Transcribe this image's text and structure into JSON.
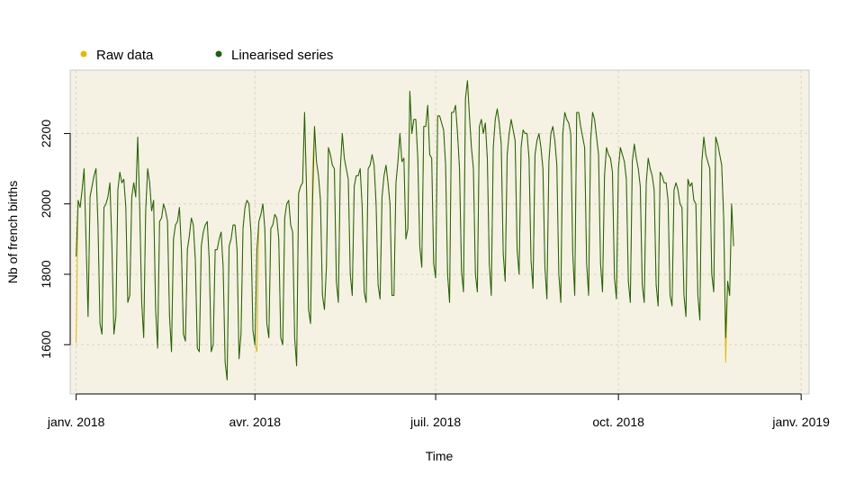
{
  "chart_data": {
    "type": "line",
    "title": "",
    "xlabel": "Time",
    "ylabel": "Nb of french births",
    "x_start": "2018-01-01",
    "x_end": "2018-12-31",
    "x_range": [
      "2017-12-29",
      "2019-01-05"
    ],
    "ylim": [
      1460,
      2380
    ],
    "x_ticks": [
      {
        "date": "2018-01-01",
        "label": "janv. 2018"
      },
      {
        "date": "2018-04-01",
        "label": "avr. 2018"
      },
      {
        "date": "2018-07-01",
        "label": "juil. 2018"
      },
      {
        "date": "2018-10-01",
        "label": "oct. 2018"
      },
      {
        "date": "2019-01-01",
        "label": "janv. 2019"
      }
    ],
    "y_ticks": [
      1600,
      1800,
      2000,
      2200
    ],
    "grid": true,
    "legend_position": "top-left",
    "plot_background": "#f5f2e4",
    "series": [
      {
        "name": "Raw data",
        "color": "#e6b800",
        "values": [
          1605,
          2010,
          1990,
          2040,
          2100,
          1890,
          1680,
          2020,
          2050,
          2080,
          2100,
          1940,
          1660,
          1630,
          1990,
          2000,
          2020,
          2060,
          1880,
          1630,
          1680,
          2040,
          2090,
          2060,
          2070,
          1990,
          1720,
          1740,
          2020,
          2060,
          2020,
          2190,
          1990,
          1720,
          1620,
          1980,
          2100,
          2060,
          1980,
          2010,
          1700,
          1590,
          1950,
          1960,
          2000,
          1980,
          1950,
          1680,
          1580,
          1900,
          1940,
          1950,
          1990,
          1870,
          1630,
          1610,
          1870,
          1910,
          1960,
          1940,
          1840,
          1590,
          1580,
          1880,
          1920,
          1940,
          1950,
          1840,
          1580,
          1600,
          1870,
          1870,
          1900,
          1920,
          1820,
          1550,
          1500,
          1880,
          1900,
          1940,
          1940,
          1870,
          1560,
          1630,
          1930,
          1990,
          2010,
          2000,
          1920,
          1640,
          1600,
          1580,
          1950,
          1970,
          2000,
          1930,
          1660,
          1620,
          1930,
          1940,
          1970,
          1960,
          1900,
          1620,
          1600,
          1960,
          2000,
          2010,
          1940,
          1920,
          1620,
          1540,
          2030,
          2050,
          2060,
          2260,
          2040,
          1700,
          1660,
          2100,
          2220,
          2120,
          2080,
          2010,
          1740,
          1700,
          1820,
          2160,
          2140,
          2110,
          2100,
          1780,
          1720,
          2100,
          2200,
          2130,
          2100,
          2070,
          1800,
          1740,
          2050,
          2080,
          2080,
          2100,
          1990,
          1750,
          1720,
          2100,
          2110,
          2140,
          2110,
          2000,
          1770,
          1730,
          2020,
          2080,
          2110,
          2060,
          2000,
          1740,
          1740,
          2060,
          2120,
          2200,
          2120,
          2130,
          1900,
          1930,
          2320,
          2200,
          2240,
          2240,
          2130,
          1880,
          1820,
          2220,
          2220,
          2280,
          2140,
          2130,
          1830,
          1790,
          2250,
          2250,
          2230,
          2210,
          2110,
          1800,
          1720,
          2260,
          2260,
          2280,
          2200,
          2100,
          1810,
          1750,
          2300,
          2350,
          2250,
          2160,
          2100,
          1800,
          1750,
          2220,
          2240,
          2200,
          2230,
          2130,
          1830,
          1740,
          2160,
          2240,
          2270,
          2230,
          2170,
          1860,
          1780,
          2140,
          2200,
          2240,
          2210,
          2180,
          1870,
          1800,
          2160,
          2210,
          2200,
          2200,
          2130,
          1840,
          1760,
          2140,
          2180,
          2200,
          2160,
          2100,
          1820,
          1730,
          2120,
          2200,
          2220,
          2180,
          2110,
          1800,
          1720,
          2200,
          2260,
          2240,
          2230,
          2200,
          1860,
          1740,
          2260,
          2260,
          2220,
          2190,
          2160,
          1830,
          1740,
          2180,
          2260,
          2240,
          2190,
          2140,
          1830,
          1750,
          2080,
          2160,
          2140,
          2130,
          2090,
          1790,
          1730,
          2100,
          2160,
          2140,
          2120,
          2070,
          1780,
          1720,
          2120,
          2170,
          2130,
          2100,
          2050,
          1770,
          1720,
          2060,
          2130,
          2100,
          2080,
          2040,
          1770,
          1710,
          2090,
          2080,
          2060,
          2060,
          2010,
          1740,
          1710,
          2040,
          2060,
          2040,
          2000,
          1990,
          1740,
          1680,
          2070,
          2050,
          2060,
          2010,
          2000,
          1740,
          1670,
          2120,
          2190,
          2140,
          2120,
          2100,
          1800,
          1750,
          2190,
          2170,
          2140,
          2110,
          1960,
          1550,
          1780,
          1740,
          2000,
          1880
        ]
      },
      {
        "name": "Linearised series",
        "color": "#1a6310",
        "values": [
          1850,
          2010,
          1990,
          2040,
          2100,
          1890,
          1680,
          2020,
          2050,
          2080,
          2100,
          1940,
          1660,
          1630,
          1990,
          2000,
          2020,
          2060,
          1880,
          1630,
          1680,
          2040,
          2090,
          2060,
          2070,
          1990,
          1720,
          1740,
          2020,
          2060,
          2020,
          2190,
          1990,
          1720,
          1620,
          1980,
          2100,
          2060,
          1980,
          2010,
          1700,
          1590,
          1950,
          1960,
          2000,
          1980,
          1950,
          1680,
          1580,
          1900,
          1940,
          1950,
          1990,
          1870,
          1630,
          1610,
          1870,
          1910,
          1960,
          1940,
          1840,
          1590,
          1580,
          1880,
          1920,
          1940,
          1950,
          1840,
          1580,
          1600,
          1870,
          1870,
          1900,
          1920,
          1820,
          1550,
          1500,
          1880,
          1900,
          1940,
          1940,
          1870,
          1560,
          1630,
          1930,
          1990,
          2010,
          2000,
          1920,
          1640,
          1600,
          1870,
          1950,
          1970,
          2000,
          1930,
          1660,
          1620,
          1930,
          1940,
          1970,
          1960,
          1900,
          1620,
          1600,
          1960,
          2000,
          2010,
          1940,
          1920,
          1620,
          1540,
          2030,
          2050,
          2060,
          2260,
          2040,
          1700,
          1660,
          2000,
          2220,
          2120,
          2080,
          2010,
          1740,
          1700,
          1820,
          2160,
          2140,
          2110,
          2100,
          1780,
          1720,
          2100,
          2200,
          2130,
          2100,
          2070,
          1800,
          1740,
          2050,
          2080,
          2080,
          2100,
          1990,
          1750,
          1720,
          2100,
          2110,
          2140,
          2110,
          2000,
          1770,
          1730,
          2020,
          2080,
          2110,
          2060,
          2000,
          1740,
          1740,
          2060,
          2120,
          2200,
          2120,
          2130,
          1900,
          1930,
          2320,
          2200,
          2240,
          2240,
          2130,
          1880,
          1820,
          2220,
          2220,
          2280,
          2140,
          2130,
          1830,
          1790,
          2250,
          2250,
          2230,
          2210,
          2110,
          1800,
          1720,
          2260,
          2260,
          2280,
          2200,
          2100,
          1810,
          1750,
          2300,
          2350,
          2250,
          2160,
          2100,
          1800,
          1750,
          2220,
          2240,
          2200,
          2230,
          2130,
          1830,
          1740,
          2160,
          2240,
          2270,
          2230,
          2170,
          1860,
          1780,
          2140,
          2200,
          2240,
          2210,
          2180,
          1870,
          1800,
          2160,
          2210,
          2200,
          2200,
          2130,
          1840,
          1760,
          2140,
          2180,
          2200,
          2160,
          2100,
          1820,
          1730,
          2120,
          2200,
          2220,
          2180,
          2110,
          1800,
          1720,
          2200,
          2260,
          2240,
          2230,
          2200,
          1860,
          1740,
          2260,
          2260,
          2220,
          2190,
          2160,
          1830,
          1740,
          2180,
          2260,
          2240,
          2190,
          2140,
          1830,
          1750,
          2080,
          2160,
          2140,
          2130,
          2090,
          1790,
          1730,
          2100,
          2160,
          2140,
          2120,
          2070,
          1780,
          1720,
          2120,
          2170,
          2130,
          2100,
          2050,
          1770,
          1720,
          2060,
          2130,
          2100,
          2080,
          2040,
          1770,
          1710,
          2090,
          2080,
          2060,
          2060,
          2010,
          1740,
          1710,
          2040,
          2060,
          2040,
          2000,
          1990,
          1740,
          1680,
          2070,
          2050,
          2060,
          2010,
          2000,
          1740,
          1670,
          2120,
          2190,
          2140,
          2120,
          2100,
          1800,
          1750,
          2190,
          2170,
          2140,
          2110,
          1960,
          1620,
          1780,
          1740,
          2000,
          1880
        ]
      }
    ]
  }
}
